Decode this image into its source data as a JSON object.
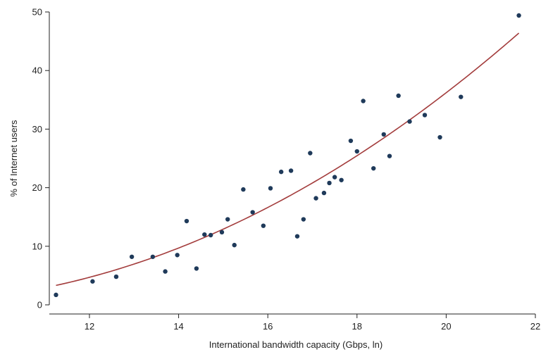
{
  "chart_data": {
    "type": "scatter",
    "xlabel": "International bandwidth capacity (Gbps, ln)",
    "ylabel": "% of Internet users",
    "xlim": [
      11.1,
      22
    ],
    "ylim": [
      0,
      50
    ],
    "xticks": [
      12,
      14,
      16,
      18,
      20,
      22
    ],
    "yticks": [
      0,
      10,
      20,
      30,
      40,
      50
    ],
    "grid": false,
    "legend": "none",
    "colors": {
      "points": "#1f3a5a",
      "fit_line": "#a33c3c",
      "axis": "#222222"
    },
    "points": [
      {
        "x": 11.25,
        "y": 1.7
      },
      {
        "x": 12.07,
        "y": 4.0
      },
      {
        "x": 12.6,
        "y": 4.8
      },
      {
        "x": 12.95,
        "y": 8.2
      },
      {
        "x": 13.42,
        "y": 8.2
      },
      {
        "x": 13.7,
        "y": 5.7
      },
      {
        "x": 13.97,
        "y": 8.5
      },
      {
        "x": 14.18,
        "y": 14.3
      },
      {
        "x": 14.4,
        "y": 6.2
      },
      {
        "x": 14.58,
        "y": 12.0
      },
      {
        "x": 14.72,
        "y": 11.9
      },
      {
        "x": 14.97,
        "y": 12.4
      },
      {
        "x": 15.1,
        "y": 14.6
      },
      {
        "x": 15.25,
        "y": 10.2
      },
      {
        "x": 15.45,
        "y": 19.7
      },
      {
        "x": 15.66,
        "y": 15.8
      },
      {
        "x": 15.9,
        "y": 13.5
      },
      {
        "x": 16.06,
        "y": 19.9
      },
      {
        "x": 16.3,
        "y": 22.7
      },
      {
        "x": 16.52,
        "y": 22.9
      },
      {
        "x": 16.66,
        "y": 11.7
      },
      {
        "x": 16.8,
        "y": 14.6
      },
      {
        "x": 16.95,
        "y": 25.9
      },
      {
        "x": 17.08,
        "y": 18.2
      },
      {
        "x": 17.26,
        "y": 19.1
      },
      {
        "x": 17.38,
        "y": 20.8
      },
      {
        "x": 17.5,
        "y": 21.8
      },
      {
        "x": 17.65,
        "y": 21.3
      },
      {
        "x": 17.86,
        "y": 28.0
      },
      {
        "x": 18.0,
        "y": 26.2
      },
      {
        "x": 18.14,
        "y": 34.8
      },
      {
        "x": 18.37,
        "y": 23.3
      },
      {
        "x": 18.6,
        "y": 29.1
      },
      {
        "x": 18.73,
        "y": 25.4
      },
      {
        "x": 18.93,
        "y": 35.7
      },
      {
        "x": 19.18,
        "y": 31.3
      },
      {
        "x": 19.52,
        "y": 32.4
      },
      {
        "x": 19.86,
        "y": 28.6
      },
      {
        "x": 20.33,
        "y": 35.5
      },
      {
        "x": 21.63,
        "y": 49.4
      }
    ],
    "fit_line": {
      "type": "quadratic",
      "x": [
        11.25,
        12,
        13,
        14,
        15,
        16,
        17,
        18,
        19,
        20,
        21,
        21.63
      ],
      "y": [
        3.2,
        4.6,
        6.9,
        9.8,
        13.3,
        16.9,
        20.9,
        25.3,
        30.1,
        35.9,
        42.1,
        47.0
      ]
    }
  }
}
